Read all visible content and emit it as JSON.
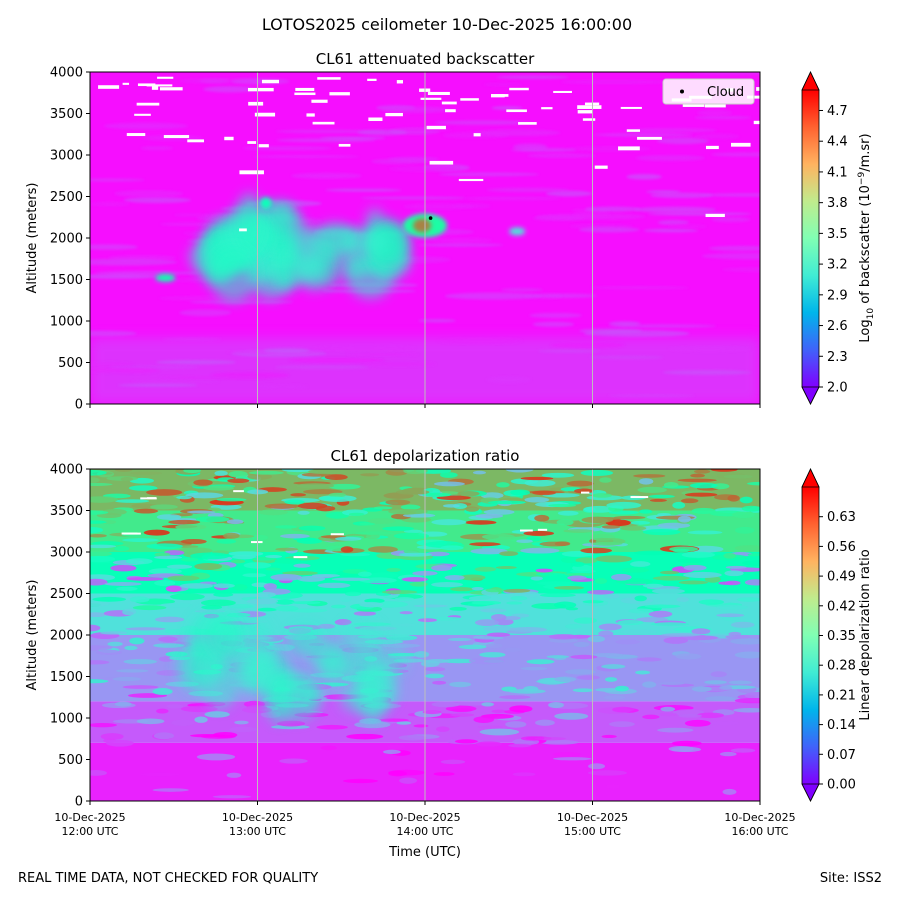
{
  "figure": {
    "suptitle": "LOTOS2025 ceilometer 10-Dec-2025 16:00:00",
    "footer_left": "REAL TIME DATA, NOT CHECKED FOR QUALITY",
    "footer_right": "Site: ISS2"
  },
  "chart_data": [
    {
      "type": "heatmap",
      "title": "CL61 attenuated backscatter",
      "xlabel": "",
      "ylabel": "Altitude (meters)",
      "x_range": [
        "10-Dec-2025 12:00 UTC",
        "10-Dec-2025 16:00 UTC"
      ],
      "ylim": [
        0,
        4000
      ],
      "yticks": [
        "0",
        "500",
        "1000",
        "1500",
        "2000",
        "2500",
        "3000",
        "3500",
        "4000"
      ],
      "xtick_labels": [],
      "grid": "vertical lines at each hour",
      "colorbar": {
        "label_main": "Log",
        "label_sub": "10",
        "label_mid": " of backscatter (10",
        "label_sup": "−9",
        "label_end": "/m.sr)",
        "min": 2.0,
        "max": 4.9,
        "extend": "both",
        "colormap": "rainbow",
        "ticks": [
          "2.0",
          "2.3",
          "2.6",
          "2.9",
          "3.2",
          "3.5",
          "3.8",
          "4.1",
          "4.4",
          "4.7"
        ]
      },
      "legend": {
        "entries": [
          "Cloud"
        ],
        "placement": "top-right"
      },
      "features": [
        {
          "description": "aerosol layer",
          "time_start": "12:45",
          "time_end": "13:50",
          "alt_bottom": 1500,
          "alt_top": 2300,
          "value": 3.2
        },
        {
          "description": "aerosol patch",
          "time_start": "13:50",
          "time_end": "14:10",
          "alt_bottom": 2000,
          "alt_top": 2300,
          "value": 4.4
        },
        {
          "description": "weak layer",
          "time_start": "12:00",
          "time_end": "16:00",
          "alt_bottom": 0,
          "alt_top": 800,
          "value": 2.3
        }
      ],
      "cloud_points": [
        {
          "time": "14:02",
          "altitude": 2240
        }
      ]
    },
    {
      "type": "heatmap",
      "title": "CL61 depolarization ratio",
      "xlabel": "Time (UTC)",
      "ylabel": "Altitude (meters)",
      "x_range": [
        "10-Dec-2025 12:00 UTC",
        "10-Dec-2025 16:00 UTC"
      ],
      "ylim": [
        0,
        4000
      ],
      "yticks": [
        "0",
        "500",
        "1000",
        "1500",
        "2000",
        "2500",
        "3000",
        "3500",
        "4000"
      ],
      "xtick_labels": [
        [
          "10-Dec-2025",
          "12:00 UTC"
        ],
        [
          "10-Dec-2025",
          "13:00 UTC"
        ],
        [
          "10-Dec-2025",
          "14:00 UTC"
        ],
        [
          "10-Dec-2025",
          "15:00 UTC"
        ],
        [
          "10-Dec-2025",
          "16:00 UTC"
        ]
      ],
      "grid": "vertical lines at each hour",
      "colorbar": {
        "label_main": "Linear depolarization ratio",
        "min": 0.0,
        "max": 0.7,
        "extend": "both",
        "colormap": "rainbow",
        "ticks": [
          "0.00",
          "0.07",
          "0.14",
          "0.21",
          "0.28",
          "0.35",
          "0.42",
          "0.49",
          "0.56",
          "0.63"
        ]
      },
      "features": [
        {
          "description": "elevated depolarization layer",
          "time_start": "12:30",
          "time_end": "13:50",
          "alt_bottom": 1200,
          "alt_top": 2100,
          "value": 0.28
        },
        {
          "description": "noisy upper region",
          "time_start": "12:00",
          "time_end": "16:00",
          "alt_bottom": 2500,
          "alt_top": 4000,
          "value": 0.49
        }
      ]
    }
  ]
}
